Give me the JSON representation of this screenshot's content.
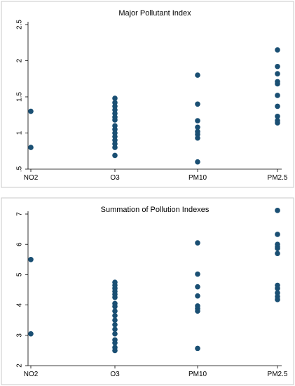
{
  "chart_data": [
    {
      "type": "scatter",
      "title": "Major Pollutant Index",
      "categories": [
        "NO2",
        "O3",
        "PM10",
        "PM2.5"
      ],
      "ylim": [
        0.5,
        2.5
      ],
      "yticks": [
        {
          "value": 0.5,
          "label": ".5"
        },
        {
          "value": 1,
          "label": "1"
        },
        {
          "value": 1.5,
          "label": "1.5"
        },
        {
          "value": 2,
          "label": "2"
        },
        {
          "value": 2.5,
          "label": "2.5"
        }
      ],
      "grid": false,
      "series": [
        {
          "category": "NO2",
          "values": [
            1.3,
            0.8
          ]
        },
        {
          "category": "O3",
          "values": [
            1.48,
            1.42,
            1.37,
            1.32,
            1.27,
            1.22,
            1.18,
            1.1,
            1.05,
            1.0,
            0.95,
            0.9,
            0.85,
            0.8,
            0.69
          ]
        },
        {
          "category": "PM10",
          "values": [
            1.8,
            1.4,
            1.17,
            1.08,
            1.02,
            0.98,
            0.93,
            0.6
          ]
        },
        {
          "category": "PM2.5",
          "values": [
            2.15,
            1.92,
            1.82,
            1.71,
            1.68,
            1.52,
            1.37,
            1.23,
            1.17,
            1.14
          ]
        }
      ]
    },
    {
      "type": "scatter",
      "title": "Summation of Pollution Indexes",
      "categories": [
        "NO2",
        "O3",
        "PM10",
        "PM2.5"
      ],
      "ylim": [
        2,
        7
      ],
      "yticks": [
        {
          "value": 2,
          "label": "2"
        },
        {
          "value": 3,
          "label": "3"
        },
        {
          "value": 4,
          "label": "4"
        },
        {
          "value": 5,
          "label": "5"
        },
        {
          "value": 6,
          "label": "6"
        },
        {
          "value": 7,
          "label": "7"
        }
      ],
      "grid": false,
      "series": [
        {
          "category": "NO2",
          "values": [
            5.5,
            3.05
          ]
        },
        {
          "category": "O3",
          "values": [
            4.75,
            4.65,
            4.55,
            4.45,
            4.35,
            4.25,
            4.05,
            3.95,
            3.8,
            3.65,
            3.5,
            3.35,
            3.2,
            3.05,
            2.85,
            2.75,
            2.6,
            2.5
          ]
        },
        {
          "category": "PM10",
          "values": [
            6.05,
            5.02,
            4.6,
            4.3,
            3.97,
            3.88,
            3.8,
            2.57
          ]
        },
        {
          "category": "PM2.5",
          "values": [
            7.12,
            6.33,
            6.0,
            5.92,
            5.87,
            5.7,
            4.65,
            4.55,
            4.4,
            4.28,
            4.18
          ]
        }
      ]
    }
  ]
}
